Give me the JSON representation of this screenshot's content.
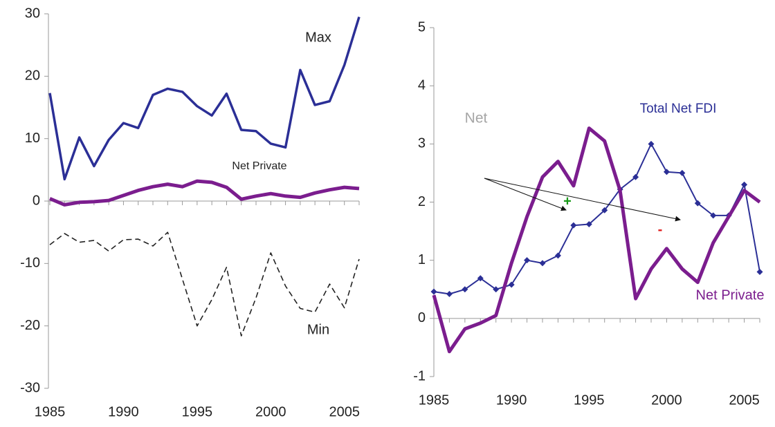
{
  "chart_data": [
    {
      "type": "line",
      "x": [
        1985,
        1986,
        1987,
        1988,
        1989,
        1990,
        1991,
        1992,
        1993,
        1994,
        1995,
        1996,
        1997,
        1998,
        1999,
        2000,
        2001,
        2002,
        2003,
        2004,
        2005,
        2006
      ],
      "xlim": [
        1985,
        2006
      ],
      "xticks": [
        1985,
        1990,
        1995,
        2000,
        2005
      ],
      "ylim": [
        -30,
        30
      ],
      "yticks": [
        -30,
        -20,
        -10,
        0,
        10,
        20,
        30
      ],
      "series": [
        {
          "name": "Max",
          "color": "#2b2f96",
          "linestyle": "solid",
          "values": [
            17.3,
            3.5,
            10.2,
            5.6,
            9.8,
            12.5,
            11.7,
            17,
            18,
            17.5,
            15.2,
            13.7,
            17.2,
            11.4,
            11.2,
            9.2,
            8.6,
            21,
            15.4,
            16,
            21.8,
            29.5
          ]
        },
        {
          "name": "Net Private",
          "color": "#7b1d8e",
          "linestyle": "solid",
          "values": [
            0.4,
            -0.6,
            -0.2,
            -0.1,
            0.1,
            0.9,
            1.7,
            2.3,
            2.7,
            2.3,
            3.2,
            3.0,
            2.2,
            0.3,
            0.8,
            1.2,
            0.8,
            0.6,
            1.3,
            1.8,
            2.2,
            2.0
          ]
        },
        {
          "name": "Min",
          "color": "#222222",
          "linestyle": "dashed",
          "values": [
            -7,
            -5.2,
            -6.6,
            -6.3,
            -8,
            -6.2,
            -6.1,
            -7.2,
            -5,
            -12.5,
            -20,
            -15.8,
            -10.6,
            -21.6,
            -15.5,
            -8.3,
            -13.6,
            -17.2,
            -17.8,
            -13.3,
            -17.1,
            -9.3
          ]
        }
      ]
    },
    {
      "type": "line",
      "x": [
        1985,
        1986,
        1987,
        1988,
        1989,
        1990,
        1991,
        1992,
        1993,
        1994,
        1995,
        1996,
        1997,
        1998,
        1999,
        2000,
        2001,
        2002,
        2003,
        2004,
        2005,
        2006
      ],
      "xlim": [
        1985,
        2006
      ],
      "xticks": [
        1985,
        1990,
        1995,
        2000,
        2005
      ],
      "ylim": [
        -1,
        5
      ],
      "yticks": [
        -1,
        0,
        1,
        2,
        3,
        4,
        5
      ],
      "series": [
        {
          "name": "Total Net FDI",
          "color": "#2b2f96",
          "linestyle": "solid",
          "marker": "diamond",
          "values": [
            0.46,
            0.42,
            0.5,
            0.69,
            0.5,
            0.58,
            1.0,
            0.95,
            1.08,
            1.6,
            1.62,
            1.86,
            2.22,
            2.43,
            3.0,
            2.52,
            2.5,
            1.98,
            1.77,
            1.77,
            2.3,
            0.8
          ]
        },
        {
          "name": "Net Private",
          "color": "#7b1d8e",
          "linestyle": "solid",
          "values": [
            0.4,
            -0.57,
            -0.18,
            -0.08,
            0.05,
            0.95,
            1.75,
            2.43,
            2.7,
            2.28,
            3.27,
            3.05,
            2.2,
            0.34,
            0.85,
            1.2,
            0.85,
            0.62,
            1.3,
            1.75,
            2.2,
            2.0
          ]
        }
      ],
      "annotations": [
        {
          "text": "Net",
          "color": "#a6a6a6"
        },
        {
          "text": "+",
          "color": "#1a9a1a"
        },
        {
          "text": "-",
          "color": "#e02020"
        }
      ]
    }
  ]
}
